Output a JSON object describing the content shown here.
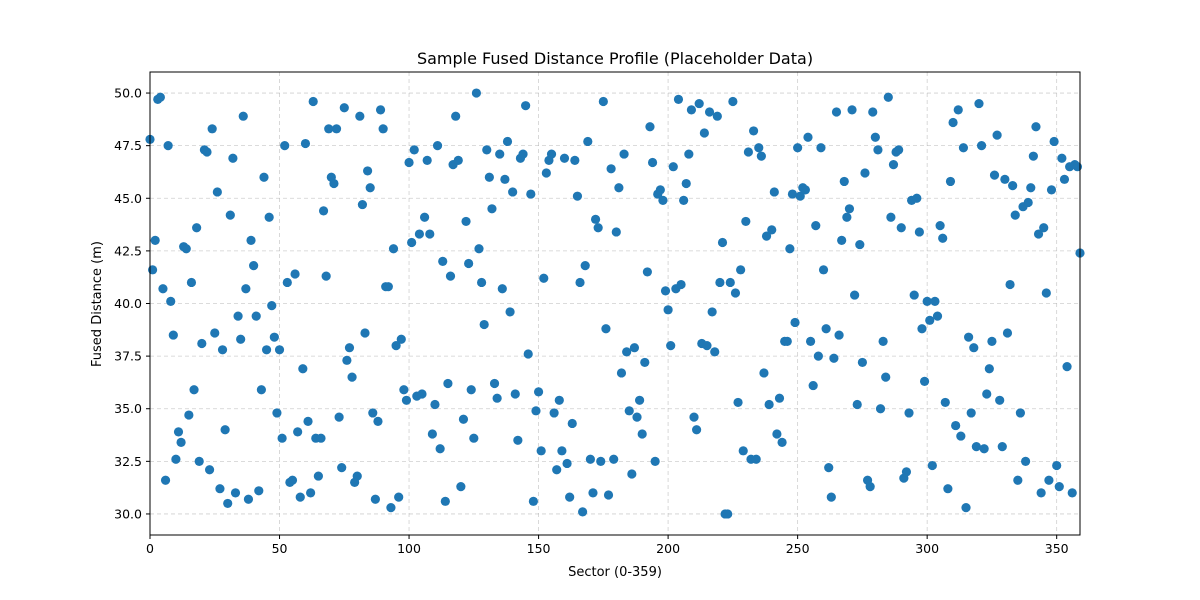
{
  "chart_data": {
    "type": "scatter",
    "title": "Sample Fused Distance Profile (Placeholder Data)",
    "xlabel": "Sector (0-359)",
    "ylabel": "Fused Distance (m)",
    "xlim": [
      0,
      359
    ],
    "ylim": [
      29,
      51
    ],
    "x_ticks": [
      0,
      50,
      100,
      150,
      200,
      250,
      300,
      350
    ],
    "y_ticks": [
      30.0,
      32.5,
      35.0,
      37.5,
      40.0,
      42.5,
      45.0,
      47.5,
      50.0
    ],
    "x_tick_labels": [
      "0",
      "50",
      "100",
      "150",
      "200",
      "250",
      "300",
      "350"
    ],
    "y_tick_labels": [
      "30.0",
      "32.5",
      "35.0",
      "37.5",
      "40.0",
      "42.5",
      "45.0",
      "47.5",
      "50.0"
    ],
    "grid": true,
    "marker_color": "#1f77b4",
    "x": [
      0,
      1,
      2,
      3,
      4,
      5,
      6,
      7,
      8,
      9,
      10,
      11,
      12,
      13,
      14,
      15,
      16,
      17,
      18,
      19,
      20,
      21,
      22,
      23,
      24,
      25,
      26,
      27,
      28,
      29,
      30,
      31,
      32,
      33,
      34,
      35,
      36,
      37,
      38,
      39,
      40,
      41,
      42,
      43,
      44,
      45,
      46,
      47,
      48,
      49,
      50,
      51,
      52,
      53,
      54,
      55,
      56,
      57,
      58,
      59,
      60,
      61,
      62,
      63,
      64,
      65,
      66,
      67,
      68,
      69,
      70,
      71,
      72,
      73,
      74,
      75,
      76,
      77,
      78,
      79,
      80,
      81,
      82,
      83,
      84,
      85,
      86,
      87,
      88,
      89,
      90,
      91,
      92,
      93,
      94,
      95,
      96,
      97,
      98,
      99,
      100,
      101,
      102,
      103,
      104,
      105,
      106,
      107,
      108,
      109,
      110,
      111,
      112,
      113,
      114,
      115,
      116,
      117,
      118,
      119,
      120,
      121,
      122,
      123,
      124,
      125,
      126,
      127,
      128,
      129,
      130,
      131,
      132,
      133,
      134,
      135,
      136,
      137,
      138,
      139,
      140,
      141,
      142,
      143,
      144,
      145,
      146,
      147,
      148,
      149,
      150,
      151,
      152,
      153,
      154,
      155,
      156,
      157,
      158,
      159,
      160,
      161,
      162,
      163,
      164,
      165,
      166,
      167,
      168,
      169,
      170,
      171,
      172,
      173,
      174,
      175,
      176,
      177,
      178,
      179,
      180,
      181,
      182,
      183,
      184,
      185,
      186,
      187,
      188,
      189,
      190,
      191,
      192,
      193,
      194,
      195,
      196,
      197,
      198,
      199,
      200,
      201,
      202,
      203,
      204,
      205,
      206,
      207,
      208,
      209,
      210,
      211,
      212,
      213,
      214,
      215,
      216,
      217,
      218,
      219,
      220,
      221,
      222,
      223,
      224,
      225,
      226,
      227,
      228,
      229,
      230,
      231,
      232,
      233,
      234,
      235,
      236,
      237,
      238,
      239,
      240,
      241,
      242,
      243,
      244,
      245,
      246,
      247,
      248,
      249,
      250,
      251,
      252,
      253,
      254,
      255,
      256,
      257,
      258,
      259,
      260,
      261,
      262,
      263,
      264,
      265,
      266,
      267,
      268,
      269,
      270,
      271,
      272,
      273,
      274,
      275,
      276,
      277,
      278,
      279,
      280,
      281,
      282,
      283,
      284,
      285,
      286,
      287,
      288,
      289,
      290,
      291,
      292,
      293,
      294,
      295,
      296,
      297,
      298,
      299,
      300,
      301,
      302,
      303,
      304,
      305,
      306,
      307,
      308,
      309,
      310,
      311,
      312,
      313,
      314,
      315,
      316,
      317,
      318,
      319,
      320,
      321,
      322,
      323,
      324,
      325,
      326,
      327,
      328,
      329,
      330,
      331,
      332,
      333,
      334,
      335,
      336,
      337,
      338,
      339,
      340,
      341,
      342,
      343,
      344,
      345,
      346,
      347,
      348,
      349,
      350,
      351,
      352,
      353,
      354,
      355,
      356,
      357,
      358,
      359
    ],
    "y": [
      47.8,
      41.6,
      43.0,
      49.7,
      49.8,
      40.7,
      31.6,
      47.5,
      40.1,
      38.5,
      32.6,
      33.9,
      33.4,
      42.7,
      42.6,
      34.7,
      41.0,
      35.9,
      43.6,
      32.5,
      38.1,
      47.3,
      47.2,
      32.1,
      48.3,
      38.6,
      45.3,
      31.2,
      37.8,
      34.0,
      30.5,
      44.2,
      46.9,
      31.0,
      39.4,
      38.3,
      48.9,
      40.7,
      30.7,
      43.0,
      41.8,
      39.4,
      31.1,
      35.9,
      46.0,
      37.8,
      44.1,
      39.9,
      38.4,
      34.8,
      37.8,
      33.6,
      47.5,
      41.0,
      31.5,
      31.6,
      41.4,
      33.9,
      30.8,
      36.9,
      47.6,
      34.4,
      31.0,
      49.6,
      33.6,
      31.8,
      33.6,
      44.4,
      41.3,
      48.3,
      46.0,
      45.7,
      48.3,
      34.6,
      32.2,
      49.3,
      37.3,
      37.9,
      36.5,
      31.5,
      31.8,
      48.9,
      44.7,
      38.6,
      46.3,
      45.5,
      34.8,
      30.7,
      34.4,
      49.2,
      48.3,
      40.8,
      40.8,
      30.3,
      42.6,
      38.0,
      30.8,
      38.3,
      35.9,
      35.4,
      46.7,
      42.9,
      47.3,
      35.6,
      43.3,
      35.7,
      44.1,
      46.8,
      43.3,
      33.8,
      35.2,
      47.5,
      33.1,
      42.0,
      30.6,
      36.2,
      41.3,
      46.6,
      48.9,
      46.8,
      31.3,
      34.5,
      43.9,
      41.9,
      35.9,
      33.6,
      50.0,
      42.6,
      41.0,
      39.0,
      47.3,
      46.0,
      44.5,
      36.2,
      35.5,
      47.1,
      40.7,
      45.9,
      47.7,
      39.6,
      45.3,
      35.7,
      33.5,
      46.9,
      47.1,
      49.4,
      37.6,
      45.2,
      30.6,
      34.9,
      35.8,
      33.0,
      41.2,
      46.2,
      46.8,
      47.1,
      34.8,
      32.1,
      35.4,
      33.0,
      46.9,
      32.4,
      30.8,
      34.3,
      46.8,
      45.1,
      41.0,
      30.1,
      41.8,
      47.7,
      32.6,
      31.0,
      44.0,
      43.6,
      32.5,
      49.6,
      38.8,
      30.9,
      46.4,
      32.6,
      43.4,
      45.5,
      36.7,
      47.1,
      37.7,
      34.9,
      31.9,
      37.9,
      34.6,
      35.4,
      33.8,
      37.2,
      41.5,
      48.4,
      46.7,
      32.5,
      45.2,
      45.4,
      44.9,
      40.6,
      39.7,
      38.0,
      46.5,
      40.7,
      49.7,
      40.9,
      44.9,
      45.7,
      47.1,
      49.2,
      34.6,
      34.0,
      49.5,
      38.1,
      48.1,
      38.0,
      49.1,
      39.6,
      37.7,
      48.9,
      41.0,
      42.9,
      30.0,
      30.0,
      41.0,
      49.6,
      40.5,
      35.3,
      41.6,
      33.0,
      43.9,
      47.2,
      32.6,
      48.2,
      32.6,
      47.4,
      47.0,
      36.7,
      43.2,
      35.2,
      43.5,
      45.3,
      33.8,
      35.5,
      33.4,
      38.2,
      38.2,
      42.6,
      45.2,
      39.1,
      47.4,
      45.1,
      45.5,
      45.4,
      47.9,
      38.2,
      36.1,
      43.7,
      37.5,
      47.4,
      41.6,
      38.8,
      32.2,
      30.8,
      37.4,
      49.1,
      38.5,
      43.0,
      45.8,
      44.1,
      44.5,
      49.2,
      40.4,
      35.2,
      42.8,
      37.2,
      46.2,
      31.6,
      31.3,
      49.1,
      47.9,
      47.3,
      35.0,
      38.2,
      36.5,
      49.8,
      44.1,
      46.6,
      47.2,
      47.3,
      43.6,
      31.7,
      32.0,
      34.8,
      44.9,
      40.4,
      45.0,
      43.4,
      38.8,
      36.3,
      40.1,
      39.2,
      32.3,
      40.1,
      39.4,
      43.7,
      43.1,
      35.3,
      31.2,
      45.8,
      48.6,
      34.2,
      49.2,
      33.7,
      47.4,
      30.3,
      38.4,
      34.8,
      37.9,
      33.2,
      49.5,
      47.5,
      33.1,
      35.7,
      36.9,
      38.2,
      46.1,
      48.0,
      35.4,
      33.2,
      45.9,
      38.6,
      40.9,
      45.6,
      44.2,
      31.6,
      34.8,
      44.6,
      32.5,
      44.8,
      45.5,
      47.0,
      48.4,
      43.3,
      31.0,
      43.6,
      40.5,
      31.6,
      45.4,
      47.7,
      32.3,
      31.3,
      46.9,
      45.9,
      37.0,
      46.5,
      31.0,
      46.6,
      46.5,
      42.4
    ]
  }
}
